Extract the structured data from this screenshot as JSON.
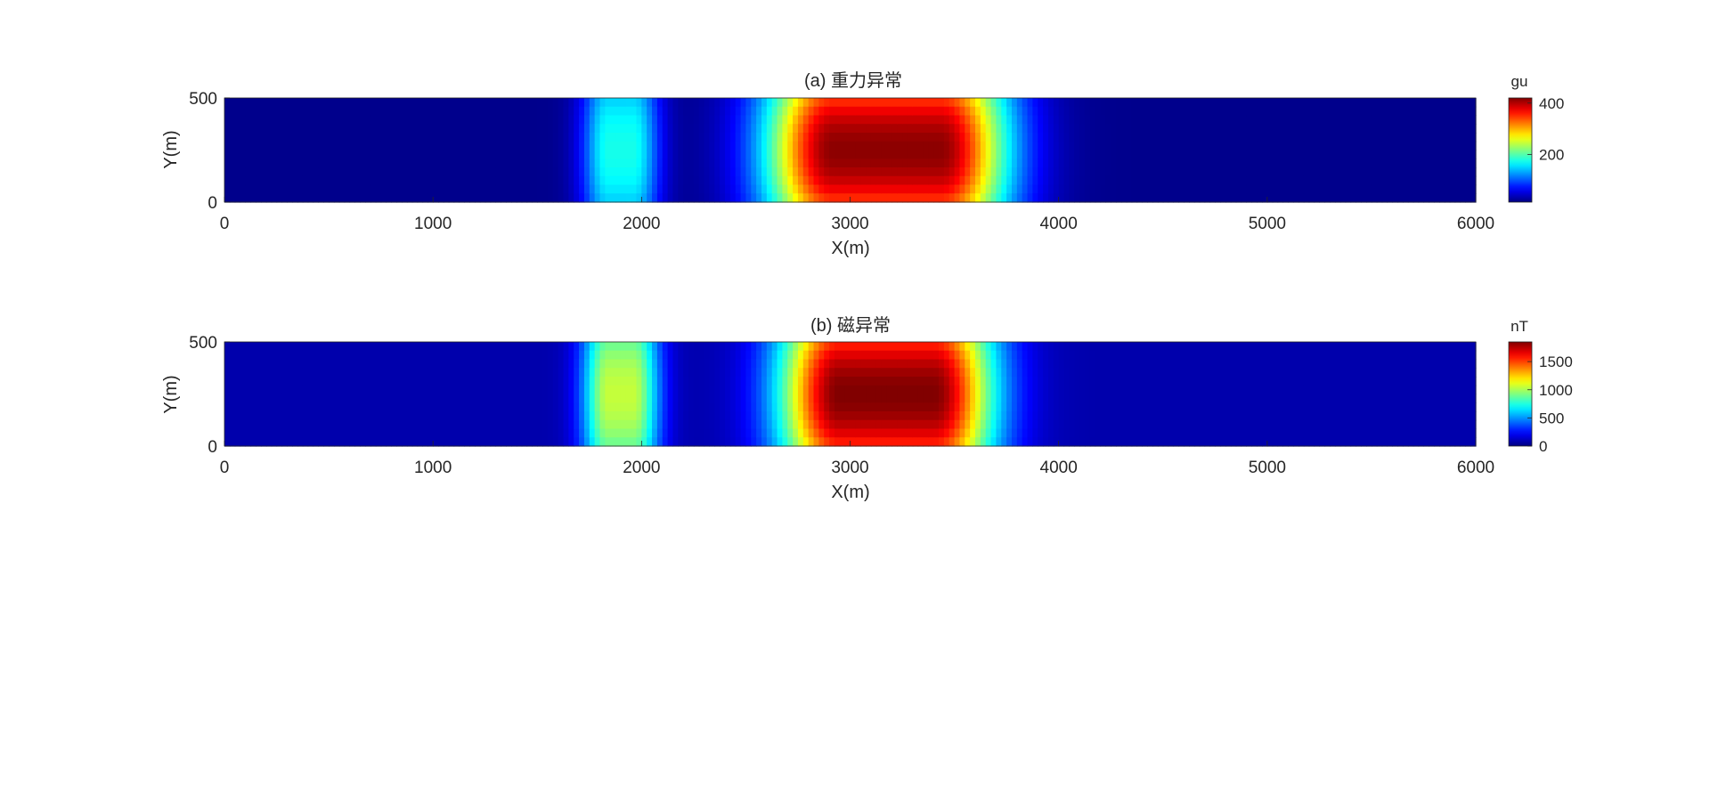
{
  "chart_data": [
    {
      "type": "heatmap",
      "title": "(a) 重力异常",
      "xlabel": "X(m)",
      "ylabel": "Y(m)",
      "xlim": [
        0,
        6000
      ],
      "ylim": [
        0,
        500
      ],
      "xticks": [
        0,
        1000,
        2000,
        3000,
        4000,
        5000,
        6000
      ],
      "xtick_labels": [
        "0",
        "1000",
        "2000",
        "3000",
        "4000",
        "5000",
        "6000"
      ],
      "yticks": [
        0,
        500
      ],
      "ytick_labels": [
        "0",
        "500"
      ],
      "colormap": "jet",
      "colorbar": {
        "label": "gu",
        "range": [
          15,
          420
        ],
        "ticks": [
          200,
          400
        ],
        "tick_labels": [
          "200",
          "400"
        ]
      },
      "bodies": [
        {
          "x_range": [
            2750,
            3600
          ],
          "y_range": [
            0,
            500
          ],
          "peak_value": 415,
          "shape": "rounded-rectangle"
        },
        {
          "x_range": [
            1800,
            2000
          ],
          "y_range": [
            0,
            500
          ],
          "peak_value": 175,
          "shape": "vertical-band"
        }
      ],
      "background_value": 20
    },
    {
      "type": "heatmap",
      "title": "(b) 磁异常",
      "xlabel": "X(m)",
      "ylabel": "Y(m)",
      "xlim": [
        0,
        6000
      ],
      "ylim": [
        0,
        500
      ],
      "xticks": [
        0,
        1000,
        2000,
        3000,
        4000,
        5000,
        6000
      ],
      "xtick_labels": [
        "0",
        "1000",
        "2000",
        "3000",
        "4000",
        "5000",
        "6000"
      ],
      "yticks": [
        0,
        500
      ],
      "ytick_labels": [
        "0",
        "500"
      ],
      "colormap": "jet",
      "colorbar": {
        "label": "nT",
        "range": [
          0,
          1850
        ],
        "ticks": [
          0,
          500,
          1000,
          1500
        ],
        "tick_labels": [
          "0",
          "500",
          "1000",
          "1500"
        ]
      },
      "bodies": [
        {
          "x_range": [
            2800,
            3550
          ],
          "y_range": [
            0,
            500
          ],
          "peak_value": 1850,
          "shape": "rounded-rectangle"
        },
        {
          "x_range": [
            1800,
            2000
          ],
          "y_range": [
            0,
            500
          ],
          "peak_value": 1050,
          "shape": "vertical-band"
        }
      ],
      "background_value": 80
    }
  ]
}
